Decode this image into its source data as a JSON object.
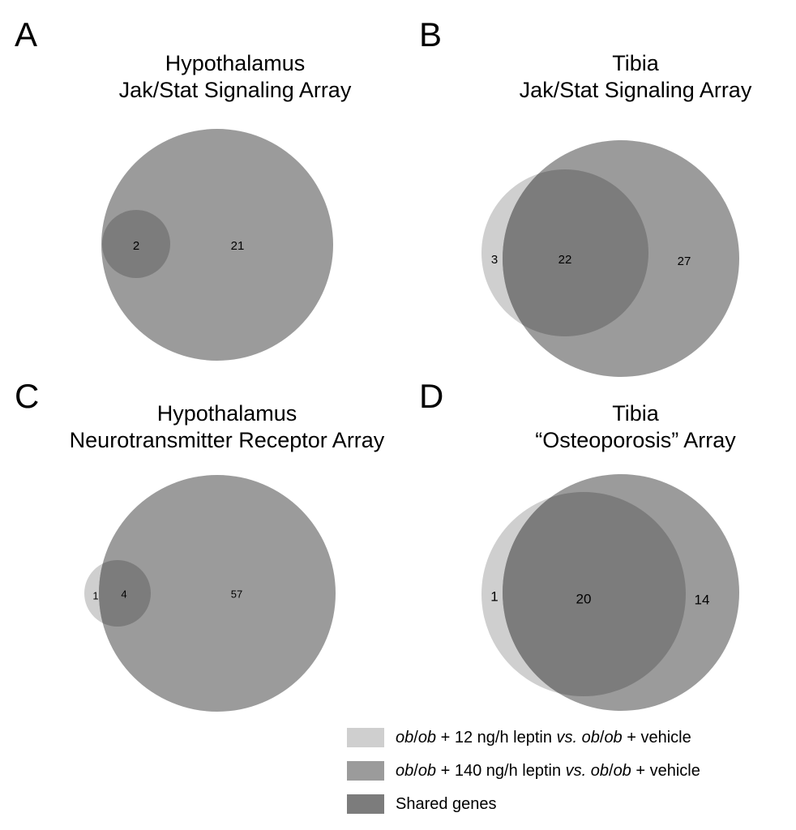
{
  "colors": {
    "low_dose": "#cfcfcf",
    "high_dose": "#9b9b9b",
    "shared": "#7c7c7c"
  },
  "panels": [
    {
      "letter": "A",
      "title_line1": "Hypothalamus",
      "title_line2": "Jak/Stat Signaling Array",
      "counts": {
        "low_only": "",
        "shared": "2",
        "high_only": "21"
      }
    },
    {
      "letter": "B",
      "title_line1": "Tibia",
      "title_line2": "Jak/Stat Signaling Array",
      "counts": {
        "low_only": "3",
        "shared": "22",
        "high_only": "27"
      }
    },
    {
      "letter": "C",
      "title_line1": "Hypothalamus",
      "title_line2": "Neurotransmitter Receptor Array",
      "counts": {
        "low_only": "1",
        "shared": "4",
        "high_only": "57"
      }
    },
    {
      "letter": "D",
      "title_line1": "Tibia",
      "title_line2": "“Osteoporosis” Array",
      "counts": {
        "low_only": "1",
        "shared": "20",
        "high_only": "14"
      }
    }
  ],
  "legend": [
    {
      "swatch": "low_dose",
      "parts": [
        {
          "text": "ob",
          "italic": true
        },
        {
          "text": "/",
          "italic": false
        },
        {
          "text": "ob",
          "italic": true
        },
        {
          "text": " + 12 ng/h leptin ",
          "italic": false
        },
        {
          "text": "vs. ob",
          "italic": true
        },
        {
          "text": "/",
          "italic": false
        },
        {
          "text": "ob",
          "italic": true
        },
        {
          "text": " + vehicle",
          "italic": false
        }
      ]
    },
    {
      "swatch": "high_dose",
      "parts": [
        {
          "text": "ob",
          "italic": true
        },
        {
          "text": "/",
          "italic": false
        },
        {
          "text": "ob",
          "italic": true
        },
        {
          "text": " + 140 ng/h leptin ",
          "italic": false
        },
        {
          "text": "vs. ob",
          "italic": true
        },
        {
          "text": "/",
          "italic": false
        },
        {
          "text": "ob",
          "italic": true
        },
        {
          "text": " + vehicle",
          "italic": false
        }
      ]
    },
    {
      "swatch": "shared",
      "parts": [
        {
          "text": "Shared genes",
          "italic": false
        }
      ]
    }
  ]
}
